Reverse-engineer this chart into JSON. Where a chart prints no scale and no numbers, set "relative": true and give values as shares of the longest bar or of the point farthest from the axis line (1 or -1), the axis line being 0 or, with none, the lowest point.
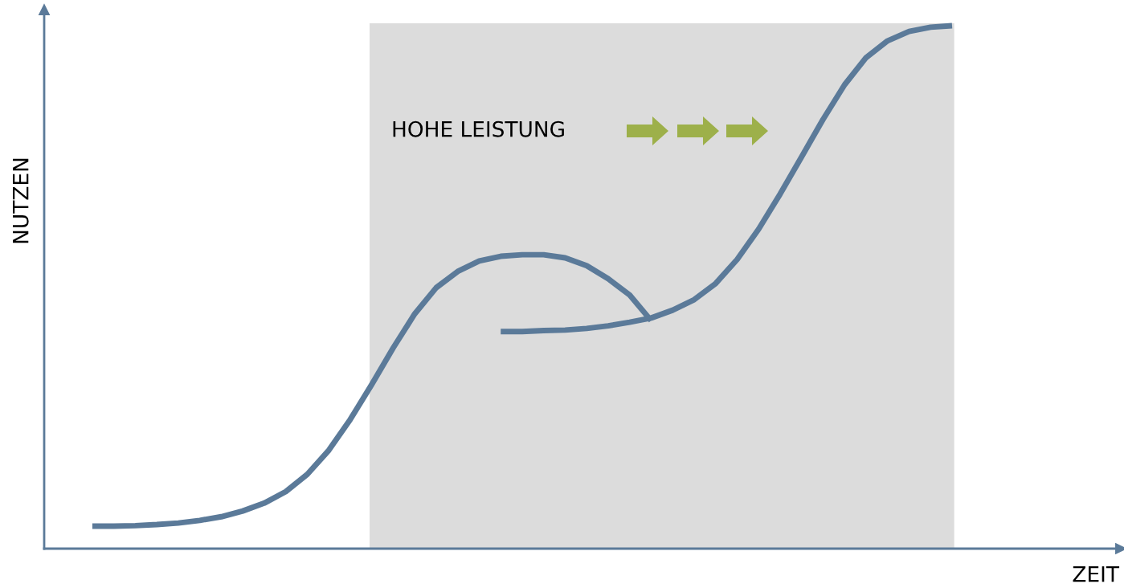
{
  "chart_data": {
    "type": "line",
    "relative": true,
    "ylabel": "NUTZEN",
    "categories": [
      null,
      null,
      null,
      null,
      null,
      null,
      null,
      null,
      null,
      null,
      null,
      null,
      null,
      null,
      null,
      null,
      null,
      null,
      null,
      null,
      null,
      null,
      null,
      null,
      null,
      null,
      null,
      null,
      null,
      null,
      null,
      null,
      null,
      null,
      null,
      null,
      null,
      null,
      null,
      null,
      null
    ],
    "series": [
      {
        "color": "#5b7a99",
        "values": [
          0.043,
          0.043,
          0.044,
          0.046,
          0.049,
          0.054,
          0.061,
          0.072,
          0.087,
          0.109,
          0.142,
          0.188,
          0.247,
          0.314,
          0.384,
          0.449,
          0.499,
          0.53,
          0.55,
          0.559,
          0.562,
          0.562,
          0.556,
          0.541,
          0.516,
          0.485,
          0.436,
          null,
          null,
          null,
          null,
          null,
          null,
          null,
          null,
          null,
          null,
          null,
          null,
          null,
          null
        ]
      },
      {
        "color": "#5b7a99",
        "values": [
          null,
          null,
          null,
          null,
          null,
          null,
          null,
          null,
          null,
          null,
          null,
          null,
          null,
          null,
          null,
          null,
          null,
          null,
          null,
          0.415,
          0.415,
          0.417,
          0.418,
          0.421,
          0.426,
          0.433,
          0.441,
          0.456,
          0.476,
          0.507,
          0.553,
          0.611,
          0.678,
          0.749,
          0.821,
          0.887,
          0.939,
          0.971,
          0.989,
          0.997,
          1
        ]
      }
    ],
    "annotations": [
      "HOHE LEISTUNG",
      "ZEIT"
    ],
    "legend": false,
    "grid": false
  }
}
